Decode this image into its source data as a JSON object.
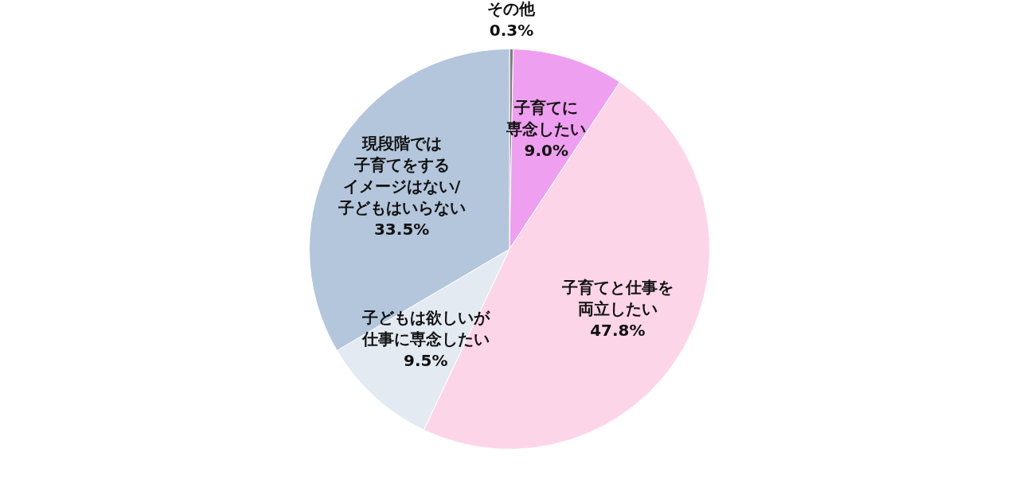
{
  "chart_data": {
    "type": "pie",
    "categories": [
      "その他",
      "子育てに専念したい",
      "子育てと仕事を両立したい",
      "子どもは欲しいが仕事に専念したい",
      "現段階では子育てをするイメージはない/子どもはいらない"
    ],
    "values": [
      0.3,
      9.0,
      47.8,
      9.5,
      33.5
    ],
    "colors": [
      "#7f7f7f",
      "#ef9fef",
      "#fdd5e8",
      "#e4eaf2",
      "#b3c6db"
    ],
    "value_labels": [
      "0.3%",
      "9.0%",
      "47.8%",
      "9.5%",
      "33.5%"
    ]
  }
}
